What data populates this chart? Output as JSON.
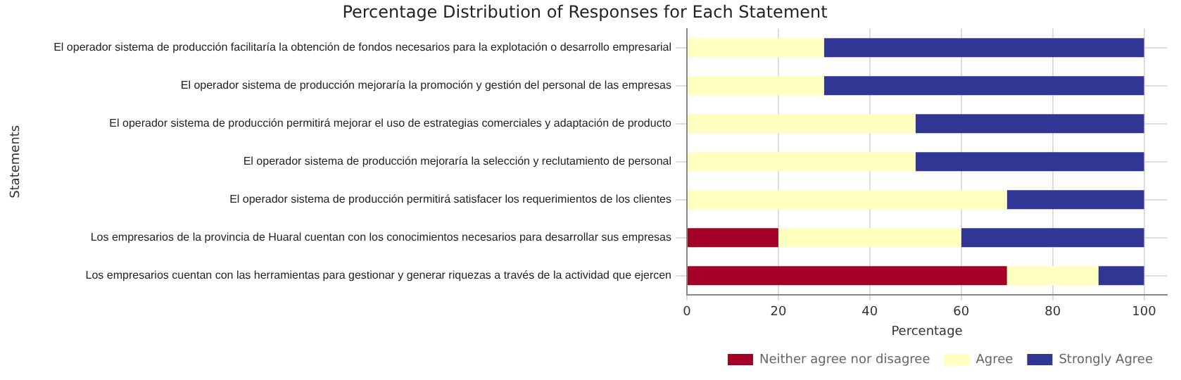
{
  "chart_data": {
    "type": "bar",
    "orientation": "horizontal",
    "stacked": true,
    "title": "Percentage Distribution of Responses for Each Statement",
    "xlabel": "Percentage",
    "ylabel": "Statements",
    "categories": [
      "El operador sistema de producción facilitaría la obtención de fondos necesarios para la explotación o desarrollo empresarial",
      "El operador sistema de producción mejoraría la promoción y gestión del personal de las empresas",
      "El operador sistema de producción permitirá mejorar el uso de estrategias comerciales y adaptación de producto",
      "El operador sistema de producción mejoraría la selección y reclutamiento de personal",
      "El operador sistema de producción permitirá satisfacer los requerimientos de los clientes",
      "Los empresarios de la provincia de Huaral cuentan con los conocimientos necesarios para desarrollar sus empresas",
      "Los empresarios cuentan con las herramientas para gestionar y generar riquezas a través de la actividad que ejercen"
    ],
    "series": [
      {
        "name": "Neither agree nor disagree",
        "color": "#a50026",
        "values": [
          0,
          0,
          0,
          0,
          0,
          20,
          70
        ]
      },
      {
        "name": "Agree",
        "color": "#ffffbf",
        "values": [
          30,
          30,
          50,
          50,
          70,
          40,
          20
        ]
      },
      {
        "name": "Strongly Agree",
        "color": "#313695",
        "values": [
          70,
          70,
          50,
          50,
          30,
          40,
          10
        ]
      }
    ],
    "xlim": [
      0,
      105
    ],
    "xticks": [
      0,
      20,
      40,
      60,
      80,
      100
    ],
    "grid": true,
    "legend": "bottom right"
  }
}
